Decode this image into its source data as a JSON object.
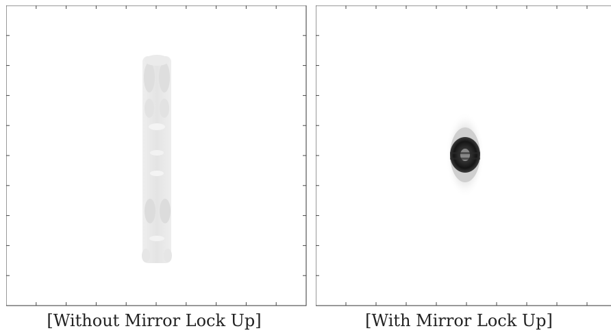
{
  "panels": [
    {
      "id": "without",
      "caption": "[Without Mirror Lock Up]",
      "pattern": "vertical-streak",
      "tone": "light-gray"
    },
    {
      "id": "with",
      "caption": "[With Mirror Lock Up]",
      "pattern": "compact-spot",
      "tone": "dark"
    }
  ],
  "colors": {
    "frame": "#333333",
    "streak_light": "#ececec",
    "streak_mid": "#dcdcdc",
    "spot_dark": "#111111"
  }
}
